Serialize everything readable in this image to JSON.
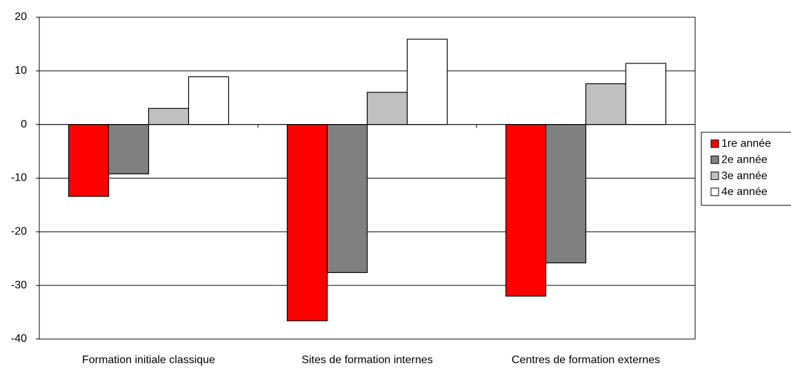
{
  "chart_data": {
    "type": "bar",
    "categories": [
      "Formation initiale classique",
      "Sites de formation internes",
      "Centres de formation externes"
    ],
    "series": [
      {
        "name": "1re année",
        "color": "#ff0000",
        "values": [
          -13.4,
          -36.6,
          -32.0
        ]
      },
      {
        "name": "2e année",
        "color": "#808080",
        "values": [
          -9.2,
          -27.6,
          -25.8
        ]
      },
      {
        "name": "3e année",
        "color": "#c0c0c0",
        "values": [
          3.0,
          6.0,
          7.6
        ]
      },
      {
        "name": "4e année",
        "color": "#ffffff",
        "values": [
          8.9,
          15.9,
          11.4
        ]
      }
    ],
    "ylim": [
      -40,
      20
    ],
    "yticks": [
      -40,
      -30,
      -20,
      -10,
      0,
      10,
      20
    ],
    "grid": true,
    "legend": "right"
  }
}
